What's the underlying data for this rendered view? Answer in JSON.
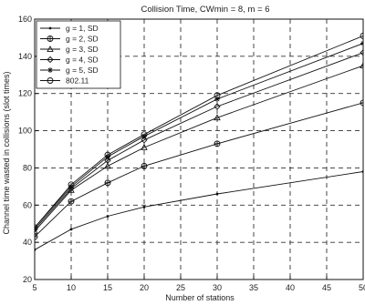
{
  "chart_data": {
    "type": "line",
    "title": "Collision Time, CWmin = 8, m = 6",
    "xlabel": "Number of stations",
    "ylabel": "Channel time wasted in collisions (slot times)",
    "xlim": [
      5,
      50
    ],
    "ylim": [
      20,
      160
    ],
    "xticks": [
      5,
      10,
      15,
      20,
      25,
      30,
      35,
      40,
      45,
      50
    ],
    "yticks": [
      20,
      40,
      60,
      80,
      100,
      120,
      140,
      160
    ],
    "grid": true,
    "legend_position": "top-left",
    "series": [
      {
        "name": "g = 1, SD",
        "marker": "dot",
        "x": [
          5,
          10,
          15,
          20,
          30,
          50
        ],
        "values": [
          36,
          47,
          54,
          59,
          66,
          78
        ]
      },
      {
        "name": "g = 2, SD",
        "marker": "circle-plus",
        "x": [
          5,
          10,
          15,
          20,
          30,
          50
        ],
        "values": [
          43,
          62,
          72,
          81,
          93,
          115
        ]
      },
      {
        "name": "g = 3, SD",
        "marker": "triangle",
        "x": [
          5,
          10,
          15,
          20,
          30,
          50
        ],
        "values": [
          46,
          68,
          81,
          91,
          107,
          135
        ]
      },
      {
        "name": "g = 4, SD",
        "marker": "diamond",
        "x": [
          5,
          10,
          15,
          20,
          30,
          50
        ],
        "values": [
          47,
          69,
          84,
          95,
          113,
          142
        ]
      },
      {
        "name": "g = 5, SD",
        "marker": "star",
        "x": [
          5,
          10,
          15,
          20,
          30,
          50
        ],
        "values": [
          48,
          70,
          86,
          97,
          117,
          147
        ]
      },
      {
        "name": "802.11",
        "marker": "circle",
        "x": [
          5,
          10,
          15,
          20,
          30,
          50
        ],
        "values": [
          48,
          71,
          87,
          98,
          119,
          151
        ]
      }
    ]
  }
}
